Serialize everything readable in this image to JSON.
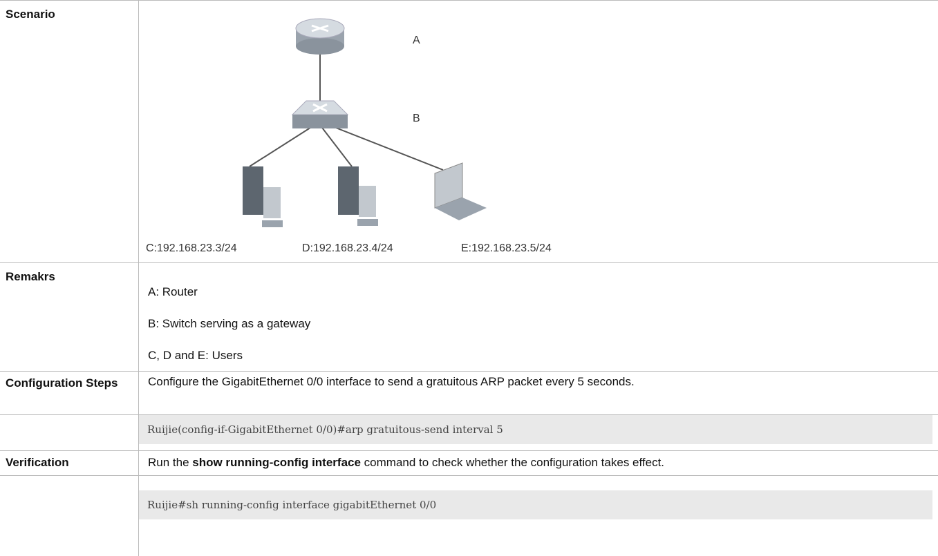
{
  "rows": [
    {
      "label": "Scenario",
      "diagram": {
        "nodes": [
          "A",
          "B"
        ],
        "hosts": [
          "C:192.168.23.3/24",
          "D:192.168.23.4/24",
          "E:192.168.23.5/24"
        ]
      }
    },
    {
      "label": "Remakrs",
      "lines": [
        "A: Router",
        "B: Switch serving as a gateway",
        "C, D and E: Users"
      ]
    },
    {
      "label": "Configuration Steps",
      "text": "Configure the GigabitEthernet 0/0 interface to send a gratuitous ARP packet every 5 seconds."
    },
    {
      "code": "Ruijie(config-if-GigabitEthernet 0/0)#arp gratuitous-send interval 5"
    },
    {
      "label": "Verification",
      "text": [
        "Run the ",
        "show running-config interface",
        " command to check whether the configuration takes effect."
      ]
    },
    {
      "code": "Ruijie#sh running-config interface gigabitEthernet 0/0"
    }
  ]
}
